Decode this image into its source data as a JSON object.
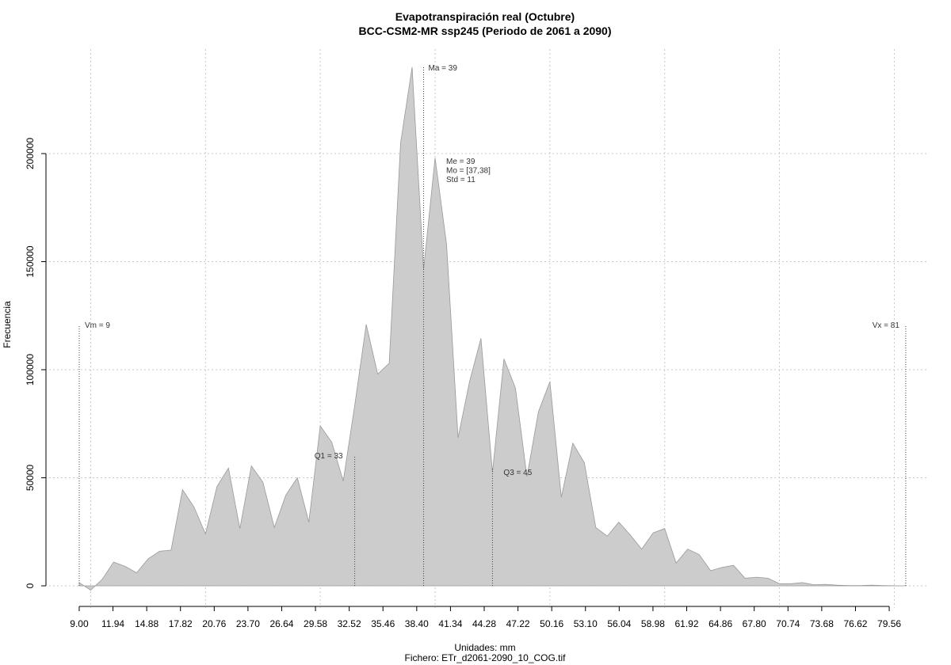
{
  "chart_data": {
    "type": "area",
    "title": "Evapotranspiración real (Octubre)",
    "subtitle": "BCC-CSM2-MR ssp245 (Periodo de 2061 a 2090)",
    "x_label": "Unidades: mm",
    "caption": "Fichero: ETr_d2061-2090_10_COG.tif",
    "y_label": "Frecuencia",
    "color": "#cccccc",
    "line_color": "#999999",
    "x": [
      9,
      10,
      11,
      12,
      13,
      14,
      15,
      16,
      17,
      18,
      19,
      20,
      21,
      22,
      23,
      24,
      25,
      26,
      27,
      28,
      29,
      30,
      31,
      32,
      33,
      34,
      35,
      36,
      37,
      38,
      39,
      40,
      41,
      42,
      43,
      44,
      45,
      46,
      47,
      48,
      49,
      50,
      51,
      52,
      53,
      54,
      55,
      56,
      57,
      58,
      59,
      60,
      61,
      62,
      63,
      64,
      65,
      66,
      67,
      68,
      69,
      70,
      71,
      72,
      73,
      74,
      75,
      76,
      77,
      78,
      79,
      80,
      81
    ],
    "values": [
      1500,
      -2000,
      3000,
      11000,
      9000,
      6000,
      12500,
      16000,
      16500,
      44500,
      36500,
      24000,
      46000,
      54500,
      26500,
      55500,
      48000,
      27000,
      42000,
      50000,
      29500,
      74000,
      66500,
      48500,
      83500,
      121000,
      98000,
      103000,
      205000,
      240000,
      146500,
      198000,
      158000,
      68500,
      94500,
      114500,
      52500,
      105000,
      91500,
      50500,
      80500,
      94500,
      41000,
      66000,
      57000,
      27000,
      23000,
      29500,
      23500,
      17000,
      24500,
      26500,
      10500,
      17000,
      14500,
      7000,
      8500,
      9500,
      3500,
      4000,
      3500,
      1000,
      1000,
      1500,
      500,
      700,
      300,
      100,
      100,
      300,
      100,
      50,
      0
    ],
    "xlim": [
      6.38,
      82.87
    ],
    "ylim": [
      -10256,
      248350
    ],
    "xticks": [
      {
        "value": 9,
        "label": "9.00"
      },
      11.94,
      14.88,
      17.82,
      20.76,
      {
        "value": 23.7,
        "label": "23.70"
      },
      26.64,
      29.58,
      32.52,
      35.46,
      {
        "value": 38.4,
        "label": "38.40"
      },
      41.34,
      44.28,
      47.22,
      50.16,
      {
        "value": 53.1,
        "label": "53.10"
      },
      56.04,
      58.98,
      61.92,
      64.86,
      {
        "value": 67.8,
        "label": "67.80"
      },
      70.74,
      73.68,
      76.62,
      79.56
    ],
    "yticks": [
      0,
      50000,
      100000,
      150000,
      200000
    ],
    "x_grid": [
      10,
      20,
      30,
      40,
      50,
      60,
      70,
      80
    ],
    "grid": true,
    "markers": [
      {
        "label": "Vm = 9",
        "x": 9,
        "y": 120900
      },
      {
        "label": "Vx = 81",
        "x": 81,
        "y": 120900
      },
      {
        "label": "Q1 = 33",
        "x": 33,
        "y": 60500
      },
      {
        "label": "Ma = 39",
        "x": 39,
        "y": 240000
      },
      {
        "label": "Q3 = 45",
        "x": 45,
        "y": 55000
      }
    ],
    "stats": [
      "Me = 39",
      "Mo = [37,38]",
      "Std = 11"
    ]
  }
}
